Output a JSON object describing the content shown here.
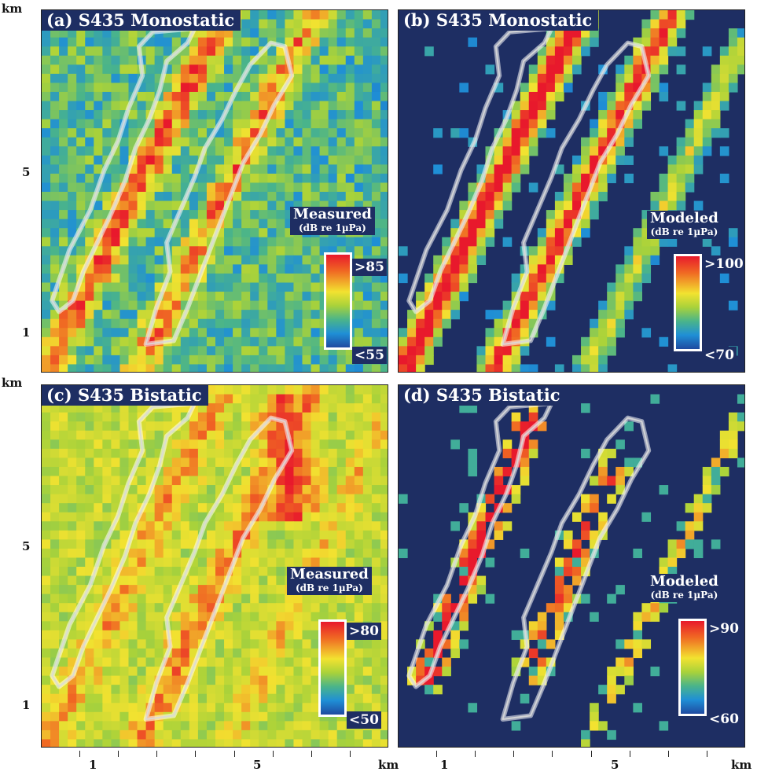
{
  "chart_data": [
    {
      "type": "heatmap",
      "panel": "a",
      "title": "(a) S435 Monostatic",
      "legend_title": "Measured",
      "units": "(dB re 1µPa)",
      "colorbar_max": ">85",
      "colorbar_min": "<55",
      "vmin": 55,
      "vmax": 85,
      "y_ticks": [
        "5",
        "1"
      ],
      "y_unit": "km",
      "grid": [
        40,
        40
      ],
      "field": "measured-monostatic"
    },
    {
      "type": "heatmap",
      "panel": "b",
      "title": "(b) S435 Monostatic",
      "legend_title": "Modeled",
      "units": "(dB re 1µPa)",
      "colorbar_max": ">100",
      "colorbar_min": "<70",
      "vmin": 70,
      "vmax": 100,
      "grid": [
        40,
        40
      ],
      "field": "modeled-monostatic"
    },
    {
      "type": "heatmap",
      "panel": "c",
      "title": "(c) S435 Bistatic",
      "legend_title": "Measured",
      "units": "(dB re 1µPa)",
      "colorbar_max": ">80",
      "colorbar_min": "<50",
      "vmin": 50,
      "vmax": 80,
      "y_ticks": [
        "5",
        "1"
      ],
      "y_unit": "km",
      "x_ticks": [
        "1",
        "5"
      ],
      "x_unit": "km",
      "grid": [
        40,
        40
      ],
      "field": "measured-bistatic"
    },
    {
      "type": "heatmap",
      "panel": "d",
      "title": "(d) S435 Bistatic",
      "legend_title": "Modeled",
      "units": "(dB re 1µPa)",
      "colorbar_max": ">90",
      "colorbar_min": "<60",
      "vmin": 60,
      "vmax": 90,
      "x_ticks": [
        "1",
        "5"
      ],
      "x_unit": "km",
      "grid": [
        40,
        40
      ],
      "field": "modeled-bistatic"
    }
  ],
  "colors": {
    "label_bg": "#1e2e63",
    "ocean_dark": "#1e2e63",
    "colormap": [
      "#1f4aa0",
      "#1f8fd6",
      "#4ab48a",
      "#a9d23a",
      "#f2e230",
      "#f06a23",
      "#e8192c"
    ]
  },
  "axes": {
    "km_label": "km",
    "y_tick_5": "5",
    "y_tick_1": "1",
    "x_tick_1": "1",
    "x_tick_5": "5"
  }
}
